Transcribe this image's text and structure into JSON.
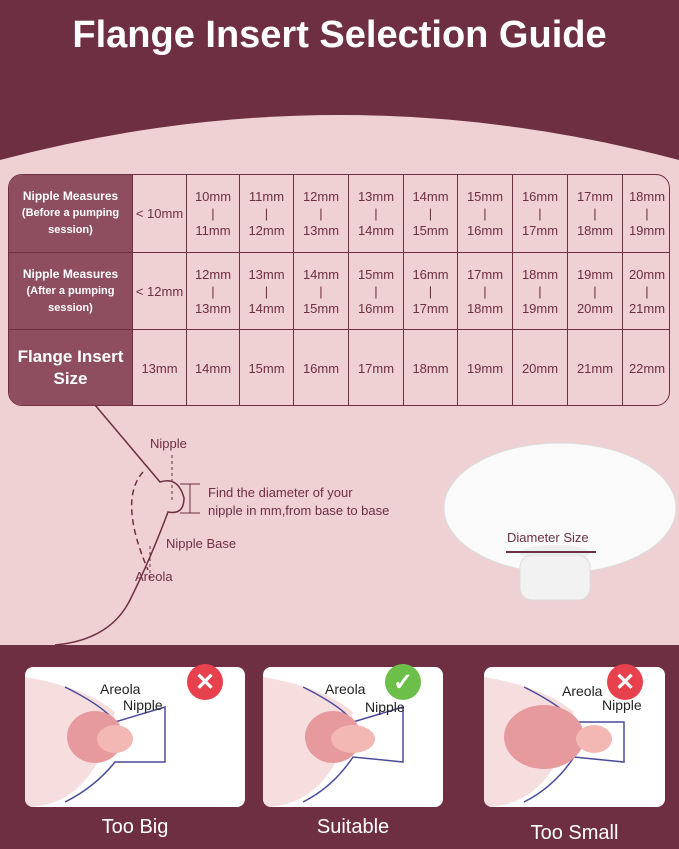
{
  "title": "Flange Insert Selection Guide",
  "table": {
    "rows": [
      {
        "header": "Nipple Measures",
        "sub": "(Before a pumping session)",
        "values": [
          [
            "< 10mm"
          ],
          [
            "10mm",
            "11mm"
          ],
          [
            "11mm",
            "12mm"
          ],
          [
            "12mm",
            "13mm"
          ],
          [
            "13mm",
            "14mm"
          ],
          [
            "14mm",
            "15mm"
          ],
          [
            "15mm",
            "16mm"
          ],
          [
            "16mm",
            "17mm"
          ],
          [
            "17mm",
            "18mm"
          ],
          [
            "18mm",
            "19mm"
          ]
        ]
      },
      {
        "header": "Nipple Measures",
        "sub": "(After a pumping session)",
        "values": [
          [
            "< 12mm"
          ],
          [
            "12mm",
            "13mm"
          ],
          [
            "13mm",
            "14mm"
          ],
          [
            "14mm",
            "15mm"
          ],
          [
            "15mm",
            "16mm"
          ],
          [
            "16mm",
            "17mm"
          ],
          [
            "17mm",
            "18mm"
          ],
          [
            "18mm",
            "19mm"
          ],
          [
            "19mm",
            "20mm"
          ],
          [
            "20mm",
            "21mm"
          ]
        ]
      },
      {
        "header": "Flange Insert Size",
        "sub": "",
        "values": [
          [
            "13mm"
          ],
          [
            "14mm"
          ],
          [
            "15mm"
          ],
          [
            "16mm"
          ],
          [
            "17mm"
          ],
          [
            "18mm"
          ],
          [
            "19mm"
          ],
          [
            "20mm"
          ],
          [
            "21mm"
          ],
          [
            "22mm"
          ]
        ]
      }
    ]
  },
  "diagram": {
    "nipple": "Nipple",
    "instruction_line1": "Find the diameter of your",
    "instruction_line2": "nipple in mm,from base to base",
    "nipple_base": "Nipple Base",
    "areola": "Areola",
    "diameter": "Diameter Size"
  },
  "fits": [
    {
      "label": "Too Big",
      "areola": "Areola",
      "nipple": "Nipple",
      "status": "incorrect",
      "icon": "x-icon",
      "color": "#e8414e"
    },
    {
      "label": "Suitable",
      "areola": "Areola",
      "nipple": "Nipple",
      "status": "correct",
      "icon": "check-icon",
      "color": "#6cc04a"
    },
    {
      "label": "Too Small",
      "areola": "Areola",
      "nipple": "Nipple",
      "status": "incorrect",
      "icon": "x-icon",
      "color": "#e8414e"
    }
  ],
  "colors": {
    "maroon": "#6e2f43",
    "pink": "#efd0d3",
    "header_cell": "#8e4e60"
  }
}
